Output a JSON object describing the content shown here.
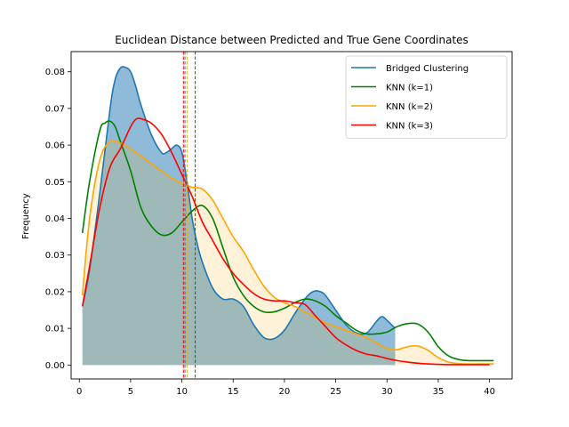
{
  "chart_data": {
    "type": "line",
    "title": "Euclidean Distance between Predicted and True Gene Coordinates",
    "xlabel": "",
    "ylabel": "Frequency",
    "xlim": [
      -0.8,
      42.2
    ],
    "ylim": [
      -0.0038,
      0.0855
    ],
    "xticks": [
      0,
      5,
      10,
      15,
      20,
      25,
      30,
      35,
      40
    ],
    "yticks": [
      0.0,
      0.01,
      0.02,
      0.03,
      0.04,
      0.05,
      0.06,
      0.07,
      0.08
    ],
    "ytick_labels": [
      "0.00",
      "0.01",
      "0.02",
      "0.03",
      "0.04",
      "0.05",
      "0.06",
      "0.07",
      "0.08"
    ],
    "grid": false,
    "legend_position": "top-right",
    "series": [
      {
        "name": "Bridged Clustering",
        "color": "#1f77b4",
        "fill": true,
        "fill_opacity": 0.5,
        "x": [
          0.3,
          1,
          2,
          3,
          3.5,
          4,
          4.5,
          5,
          5.5,
          6,
          7,
          8,
          8.5,
          9,
          9.5,
          10,
          10.5,
          11,
          11.5,
          12,
          13,
          14,
          15,
          16,
          17,
          18,
          19,
          20,
          21,
          22,
          22.5,
          23,
          23.5,
          24,
          25,
          26,
          27,
          28,
          29,
          29.5,
          30,
          30.8
        ],
        "y": [
          0.016,
          0.026,
          0.047,
          0.07,
          0.078,
          0.081,
          0.0812,
          0.08,
          0.076,
          0.071,
          0.063,
          0.058,
          0.058,
          0.059,
          0.06,
          0.058,
          0.05,
          0.04,
          0.033,
          0.028,
          0.021,
          0.018,
          0.018,
          0.016,
          0.011,
          0.0075,
          0.0072,
          0.0095,
          0.014,
          0.018,
          0.0195,
          0.0202,
          0.02,
          0.019,
          0.015,
          0.011,
          0.0088,
          0.0087,
          0.012,
          0.0132,
          0.0122,
          0.01
        ]
      },
      {
        "name": "KNN (k=1)",
        "color": "#008000",
        "fill": false,
        "x": [
          0.3,
          1,
          2,
          2.5,
          3,
          3.5,
          4,
          5,
          6,
          7,
          8,
          9,
          10,
          11,
          12,
          13,
          14,
          15,
          16,
          17,
          18,
          19,
          20,
          21,
          22,
          23,
          24,
          25,
          26,
          27,
          28,
          29,
          30,
          31,
          32,
          33,
          34,
          35,
          36,
          37,
          38,
          39,
          40.4
        ],
        "y": [
          0.036,
          0.05,
          0.064,
          0.066,
          0.0665,
          0.065,
          0.061,
          0.053,
          0.043,
          0.038,
          0.0355,
          0.036,
          0.039,
          0.042,
          0.0435,
          0.04,
          0.032,
          0.024,
          0.019,
          0.016,
          0.0145,
          0.0145,
          0.0155,
          0.017,
          0.018,
          0.0175,
          0.016,
          0.0135,
          0.0115,
          0.0095,
          0.0085,
          0.0085,
          0.009,
          0.0105,
          0.0113,
          0.0112,
          0.009,
          0.005,
          0.0025,
          0.0015,
          0.0012,
          0.0012,
          0.0012
        ]
      },
      {
        "name": "KNN (k=2)",
        "color": "#ffa500",
        "fill": true,
        "fill_opacity": 0.15,
        "x": [
          0.3,
          1,
          2,
          3,
          4,
          5,
          6,
          7,
          8,
          9,
          10,
          11,
          12,
          13,
          14,
          15,
          16,
          17,
          18,
          19,
          20,
          21,
          22,
          23,
          24,
          25,
          26,
          27,
          28,
          29,
          30,
          31,
          32,
          33,
          34,
          35,
          36,
          37,
          38,
          39,
          40.4
        ],
        "y": [
          0.019,
          0.04,
          0.056,
          0.061,
          0.0605,
          0.059,
          0.057,
          0.055,
          0.053,
          0.051,
          0.0495,
          0.0485,
          0.048,
          0.045,
          0.04,
          0.035,
          0.031,
          0.026,
          0.0215,
          0.0185,
          0.017,
          0.016,
          0.0145,
          0.013,
          0.0115,
          0.0105,
          0.0095,
          0.0085,
          0.0075,
          0.006,
          0.0045,
          0.0042,
          0.005,
          0.0052,
          0.004,
          0.002,
          0.0008,
          0.0004,
          0.0003,
          0.0003,
          0.0003
        ]
      },
      {
        "name": "KNN (k=3)",
        "color": "#ff0000",
        "fill": false,
        "x": [
          0.3,
          1,
          2,
          3,
          4,
          5,
          5.5,
          6,
          7,
          8,
          9,
          10,
          11,
          12,
          13,
          14,
          15,
          16,
          17,
          18,
          19,
          20,
          21,
          22,
          23,
          24,
          25,
          26,
          27,
          28,
          29,
          30,
          31,
          32,
          33,
          34,
          35,
          36,
          37,
          38,
          39,
          40
        ],
        "y": [
          0.016,
          0.027,
          0.043,
          0.054,
          0.059,
          0.065,
          0.067,
          0.0672,
          0.066,
          0.063,
          0.058,
          0.052,
          0.046,
          0.039,
          0.034,
          0.029,
          0.025,
          0.022,
          0.0195,
          0.018,
          0.0175,
          0.0175,
          0.017,
          0.0165,
          0.0135,
          0.0105,
          0.0075,
          0.0055,
          0.004,
          0.003,
          0.0025,
          0.0018,
          0.0012,
          0.0008,
          0.0005,
          0.0003,
          0.0002,
          0.0001,
          0.0001,
          0.0001,
          0.0001,
          0.0001
        ]
      }
    ],
    "reference_lines": [
      {
        "series": "Bridged Clustering",
        "x": 10.3,
        "color": "#1f77b4",
        "style": "dashed"
      },
      {
        "series": "KNN (k=1)",
        "x": 11.3,
        "color": "#008000",
        "style": "dashed"
      },
      {
        "series": "KNN (k=2)",
        "x": 10.5,
        "color": "#ffa500",
        "style": "dashed"
      },
      {
        "series": "KNN (k=3)",
        "x": 10.15,
        "color": "#ff0000",
        "style": "dashed"
      }
    ]
  }
}
